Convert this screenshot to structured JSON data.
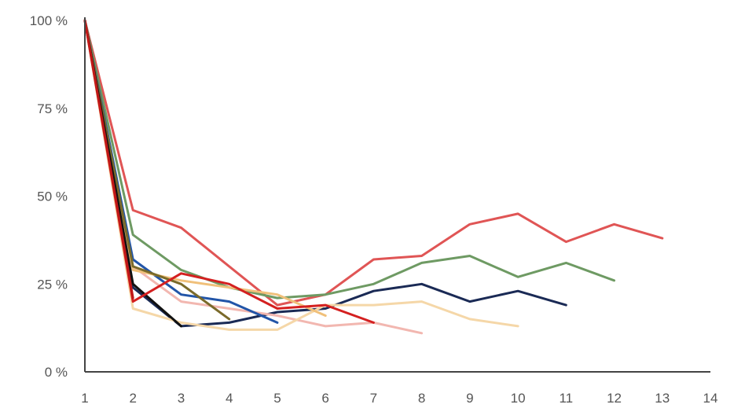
{
  "chart_data": {
    "type": "line",
    "x_ticks": [
      "1",
      "2",
      "3",
      "4",
      "5",
      "6",
      "7",
      "8",
      "9",
      "10",
      "11",
      "12",
      "13",
      "14"
    ],
    "y_ticks": [
      "0 %",
      "25 %",
      "50 %",
      "75 %",
      "100 %"
    ],
    "xlim": [
      1,
      14
    ],
    "ylim": [
      0,
      100
    ],
    "grid": false,
    "series": [
      {
        "color": "#e05555",
        "x": [
          1,
          2,
          3,
          4,
          5,
          6,
          7,
          8,
          9,
          10,
          11,
          12,
          13
        ],
        "values": [
          100,
          46,
          41,
          30,
          19,
          22,
          32,
          33,
          42,
          45,
          37,
          42,
          38
        ]
      },
      {
        "color": "#6e9a63",
        "x": [
          1,
          2,
          3,
          4,
          5,
          6,
          7,
          8,
          9,
          10,
          11,
          12
        ],
        "values": [
          100,
          39,
          29,
          24,
          21,
          22,
          25,
          31,
          33,
          27,
          31,
          26
        ]
      },
      {
        "color": "#1a2a55",
        "x": [
          1,
          2,
          3,
          4,
          5,
          6,
          7,
          8,
          9,
          10,
          11
        ],
        "values": [
          100,
          24,
          13,
          14,
          17,
          18,
          23,
          25,
          20,
          23,
          19
        ]
      },
      {
        "color": "#f2b7b0",
        "x": [
          1,
          2,
          3,
          4,
          5,
          6,
          7,
          8
        ],
        "values": [
          100,
          30,
          20,
          18,
          16,
          13,
          14,
          11
        ]
      },
      {
        "color": "#f5d7a8",
        "x": [
          1,
          2,
          3,
          4,
          5,
          6,
          7,
          8,
          9,
          10
        ],
        "values": [
          100,
          18,
          14,
          12,
          12,
          19,
          19,
          20,
          15,
          13
        ]
      },
      {
        "color": "#2255a8",
        "x": [
          1,
          2,
          3,
          4,
          5
        ],
        "values": [
          100,
          32,
          22,
          20,
          14
        ]
      },
      {
        "color": "#f0c07a",
        "x": [
          1,
          2,
          3,
          4,
          5,
          6
        ],
        "values": [
          100,
          29,
          26,
          24,
          22,
          16
        ]
      },
      {
        "color": "#7a6a2a",
        "x": [
          1,
          2,
          3,
          4
        ],
        "values": [
          100,
          30,
          25,
          15
        ]
      },
      {
        "color": "#111111",
        "x": [
          1,
          2,
          3
        ],
        "values": [
          100,
          25,
          13
        ]
      },
      {
        "color": "#d42020",
        "x": [
          1,
          2,
          3,
          4,
          5,
          6,
          7
        ],
        "values": [
          100,
          20,
          28,
          25,
          18,
          19,
          14
        ]
      },
      {
        "color": "#c01818",
        "x": [
          1,
          2
        ],
        "values": [
          100,
          21
        ]
      }
    ]
  }
}
